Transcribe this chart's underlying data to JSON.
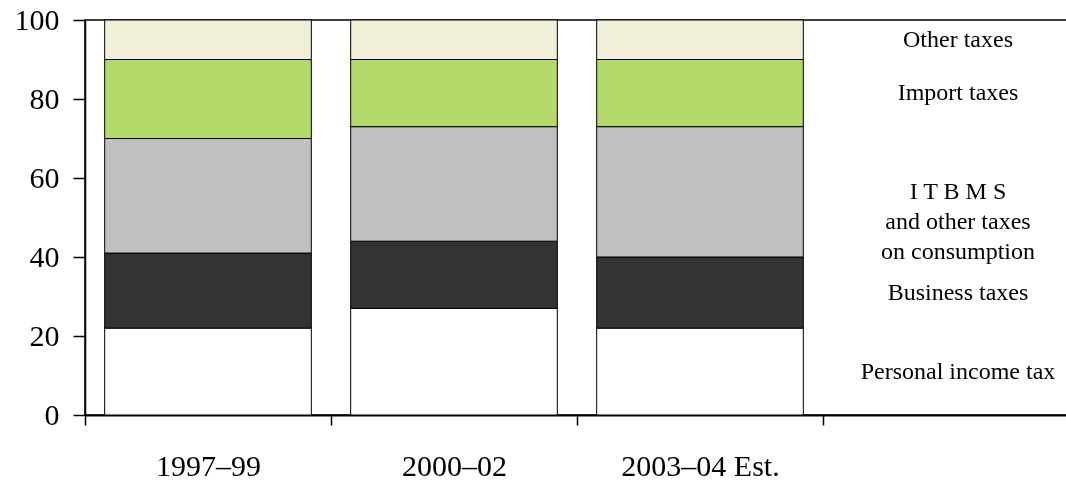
{
  "chart_data": {
    "type": "bar",
    "stacked": true,
    "categories": [
      "1997–99",
      "2000–02",
      "2003–04 Est."
    ],
    "series": [
      {
        "name": "Personal income tax",
        "color": "#ffffff",
        "values": [
          22,
          27,
          22
        ]
      },
      {
        "name": "Business taxes",
        "color": "#333333",
        "values": [
          19,
          17,
          18
        ]
      },
      {
        "name": "I T B M S\nand other taxes\non consumption",
        "color": "#c0c0c0",
        "values": [
          29,
          29,
          33
        ]
      },
      {
        "name": "Import taxes",
        "color": "#b3d96b",
        "values": [
          20,
          17,
          17
        ]
      },
      {
        "name": "Other taxes",
        "color": "#f0f0d8",
        "values": [
          10,
          10,
          10
        ]
      }
    ],
    "ylim": [
      0,
      100
    ],
    "yticks": [
      0,
      20,
      40,
      60,
      80,
      100
    ]
  }
}
